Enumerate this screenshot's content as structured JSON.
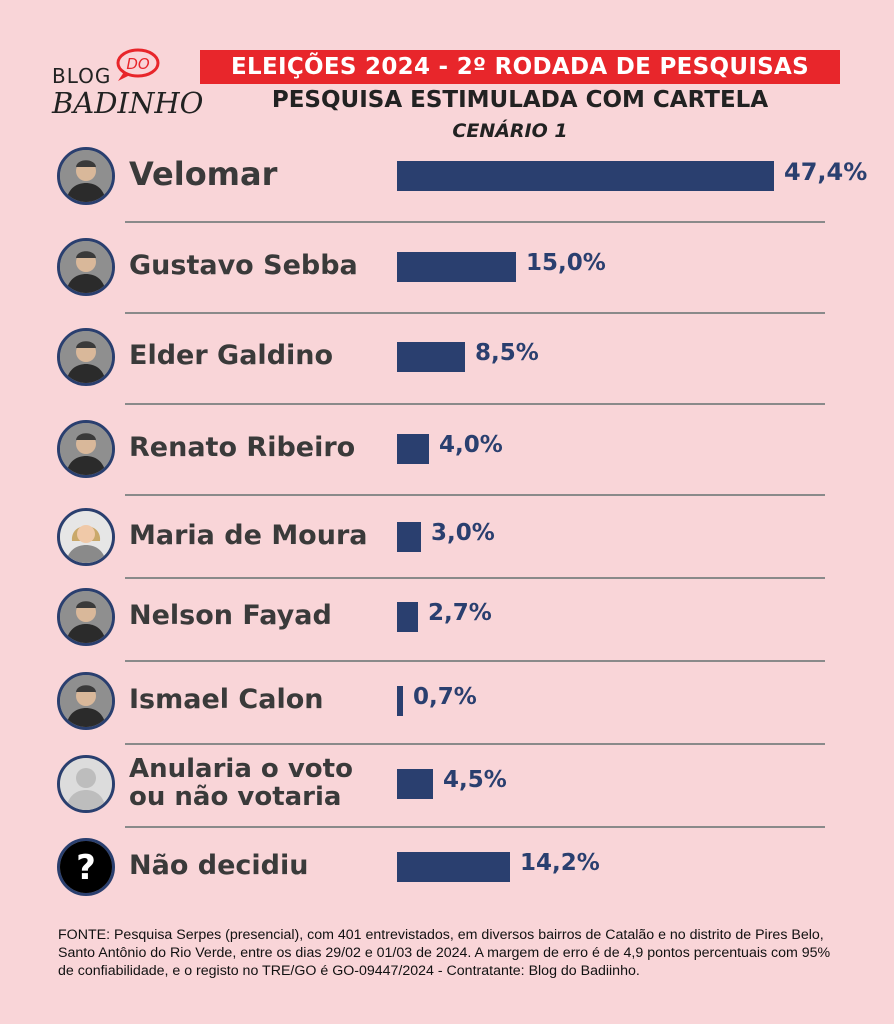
{
  "logo": {
    "top": "BLOG",
    "badge": "DO",
    "bottom": "BADINHO"
  },
  "header": {
    "title": "ELEIÇÕES 2024 - 2º RODADA DE PESQUISAS",
    "subtitle": "PESQUISA ESTIMULADA  COM CARTELA",
    "scenario": "CENÁRIO 1"
  },
  "colors": {
    "background": "#f9d5d8",
    "bar": "#2a3f6f",
    "banner": "#e8262b"
  },
  "chart_data": {
    "type": "bar",
    "orientation": "horizontal",
    "unit": "%",
    "categories": [
      "Velomar",
      "Gustavo Sebba",
      "Elder Galdino",
      "Renato Ribeiro",
      "Maria de Moura",
      "Nelson Fayad",
      "Ismael Calon",
      "Anularia o voto ou não votaria",
      "Não decidiu"
    ],
    "values": [
      47.4,
      15.0,
      8.5,
      4.0,
      3.0,
      2.7,
      0.7,
      4.5,
      14.2
    ],
    "value_labels": [
      "47,4%",
      "15,0%",
      "8,5%",
      "4,0%",
      "3,0%",
      "2,7%",
      "0,7%",
      "4,5%",
      "14,2%"
    ],
    "xlim": [
      0,
      47.4
    ]
  },
  "footer": {
    "text": "FONTE: Pesquisa Serpes (presencial), com 401 entrevistados, em diversos bairros de Catalão e no distrito de Pires Belo, Santo Antônio do Rio Verde, entre os dias 29/02 e 01/03 de 2024. A margem de erro é de 4,9 pontos percentuais com 95% de confiabilidade, e o registo no TRE/GO é GO-09447/2024 - Contratante: Blog do Badiinho."
  }
}
